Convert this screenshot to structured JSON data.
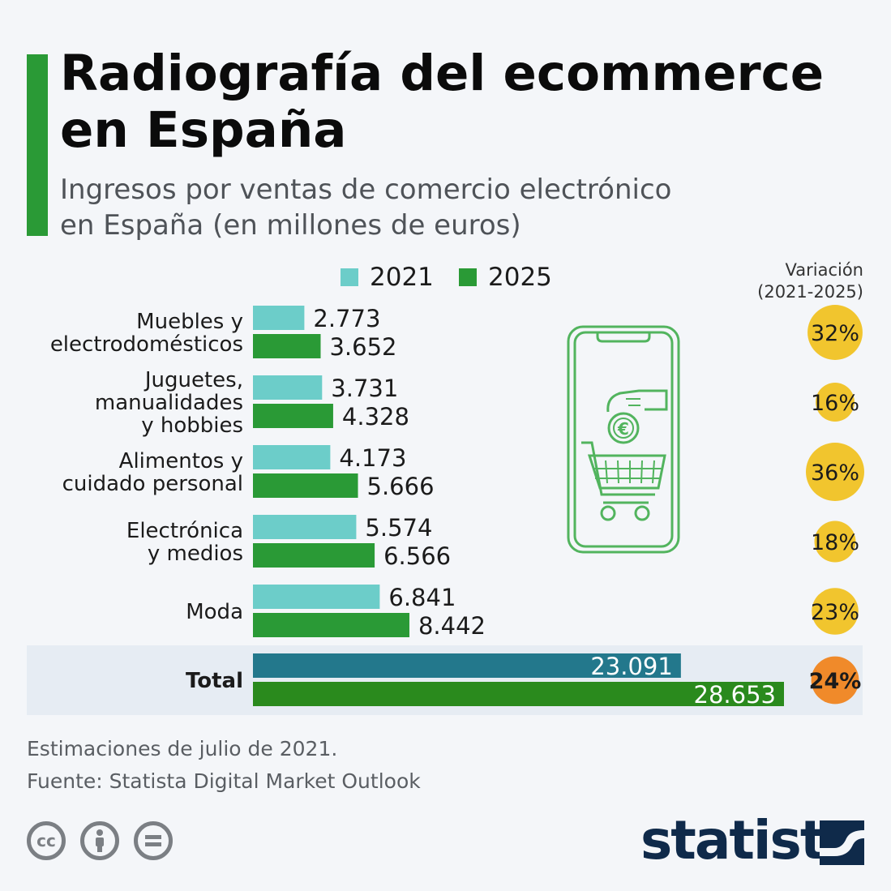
{
  "header": {
    "title": "Radiografía del ecommerce en España",
    "subtitle": "Ingresos por ventas de comercio electrónico en España (en millones de euros)"
  },
  "legend": [
    {
      "label": "2021",
      "color": "#6ccdc9"
    },
    {
      "label": "2025",
      "color": "#2a9a36"
    }
  ],
  "variation_header": [
    "Variación",
    "(2021-2025)"
  ],
  "chart_data": {
    "type": "bar",
    "orientation": "horizontal",
    "categories": [
      "Muebles y electrodomésticos",
      "Juguetes, manualidades y hobbies",
      "Alimentos y cuidado personal",
      "Electrónica y medios",
      "Moda",
      "Total"
    ],
    "category_lines": [
      [
        "Muebles y",
        "electrodomésticos"
      ],
      [
        "Juguetes,",
        "manualidades",
        "y hobbies"
      ],
      [
        "Alimentos y",
        "cuidado personal"
      ],
      [
        "Electrónica",
        "y medios"
      ],
      [
        "Moda"
      ],
      [
        "Total"
      ]
    ],
    "series": [
      {
        "name": "2021",
        "values": [
          2773,
          3731,
          4173,
          5574,
          6841,
          23091
        ],
        "labels": [
          "2.773",
          "3.731",
          "4.173",
          "5.574",
          "6.841",
          "23.091"
        ]
      },
      {
        "name": "2025",
        "values": [
          3652,
          4328,
          5666,
          6566,
          8442,
          28653
        ],
        "labels": [
          "3.652",
          "4.328",
          "5.666",
          "6.566",
          "8.442",
          "28.653"
        ]
      }
    ],
    "variation": [
      32,
      16,
      36,
      18,
      23,
      24
    ],
    "variation_labels": [
      "32%",
      "16%",
      "36%",
      "18%",
      "23%",
      "24%"
    ],
    "colors": {
      "2021": "#6ccdc9",
      "2025": "#2a9a36",
      "total_2021": "#23788c",
      "total_2025": "#2a8a1d",
      "bubble": "#f1c52e",
      "bubble_total": "#f08a2a"
    }
  },
  "notes": [
    "Estimaciones de julio de 2021.",
    "Fuente: Statista Digital Market Outlook"
  ],
  "license_icons": [
    "cc-icon",
    "person-icon",
    "equals-icon"
  ],
  "logo": {
    "text": "statista",
    "mark": "statista-logo-icon"
  },
  "accent_color": "#2a9a36"
}
